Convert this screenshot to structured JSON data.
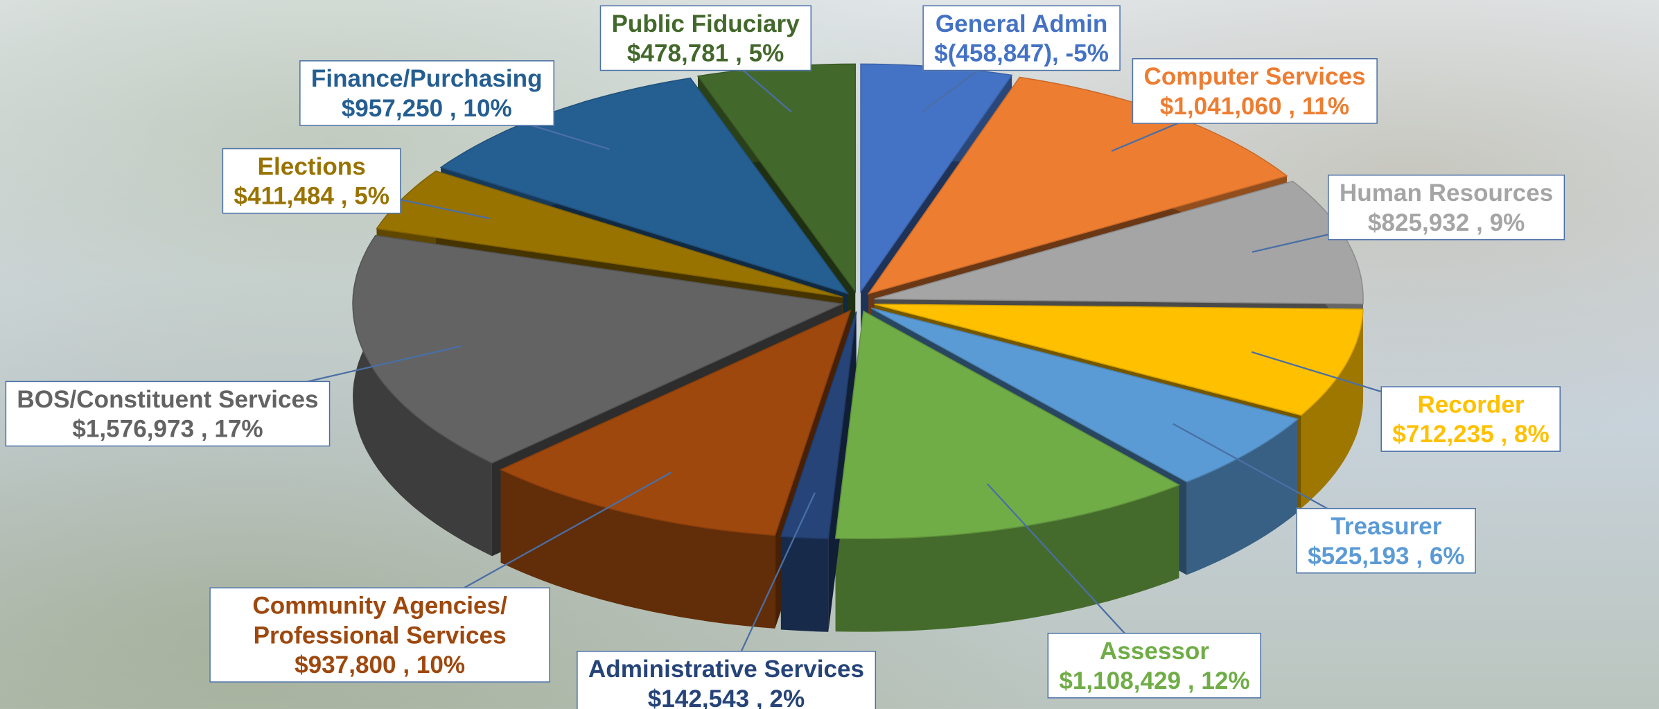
{
  "chart_data": {
    "type": "pie",
    "categories": [
      "General Admin",
      "Computer Services",
      "Human Resources",
      "Recorder",
      "Treasurer",
      "Assessor",
      "Administrative Services",
      "Community Agencies/ Professional Services",
      "BOS/Constituent Services",
      "Elections",
      "Finance/Purchasing",
      "Public Fiduciary"
    ],
    "values": [
      -458847,
      1041060,
      825932,
      712235,
      525193,
      1108429,
      142543,
      937800,
      1576973,
      411484,
      957250,
      478781
    ],
    "value_labels": [
      "$(458,847), -5%",
      "$1,041,060 , 11%",
      "$825,932 , 9%",
      "$712,235 , 8%",
      "$525,193 , 6%",
      "$1,108,429 , 12%",
      "$142,543 , 2%",
      "$937,800 , 10%",
      "$1,576,973 , 17%",
      "$411,484 , 5%",
      "$957,250 , 10%",
      "$478,781 , 5%"
    ],
    "colors": [
      "#4472c4",
      "#ed7d31",
      "#a5a5a5",
      "#ffc000",
      "#5b9bd5",
      "#70ad47",
      "#264478",
      "#9e480e",
      "#636363",
      "#997300",
      "#255e91",
      "#43682b"
    ]
  }
}
